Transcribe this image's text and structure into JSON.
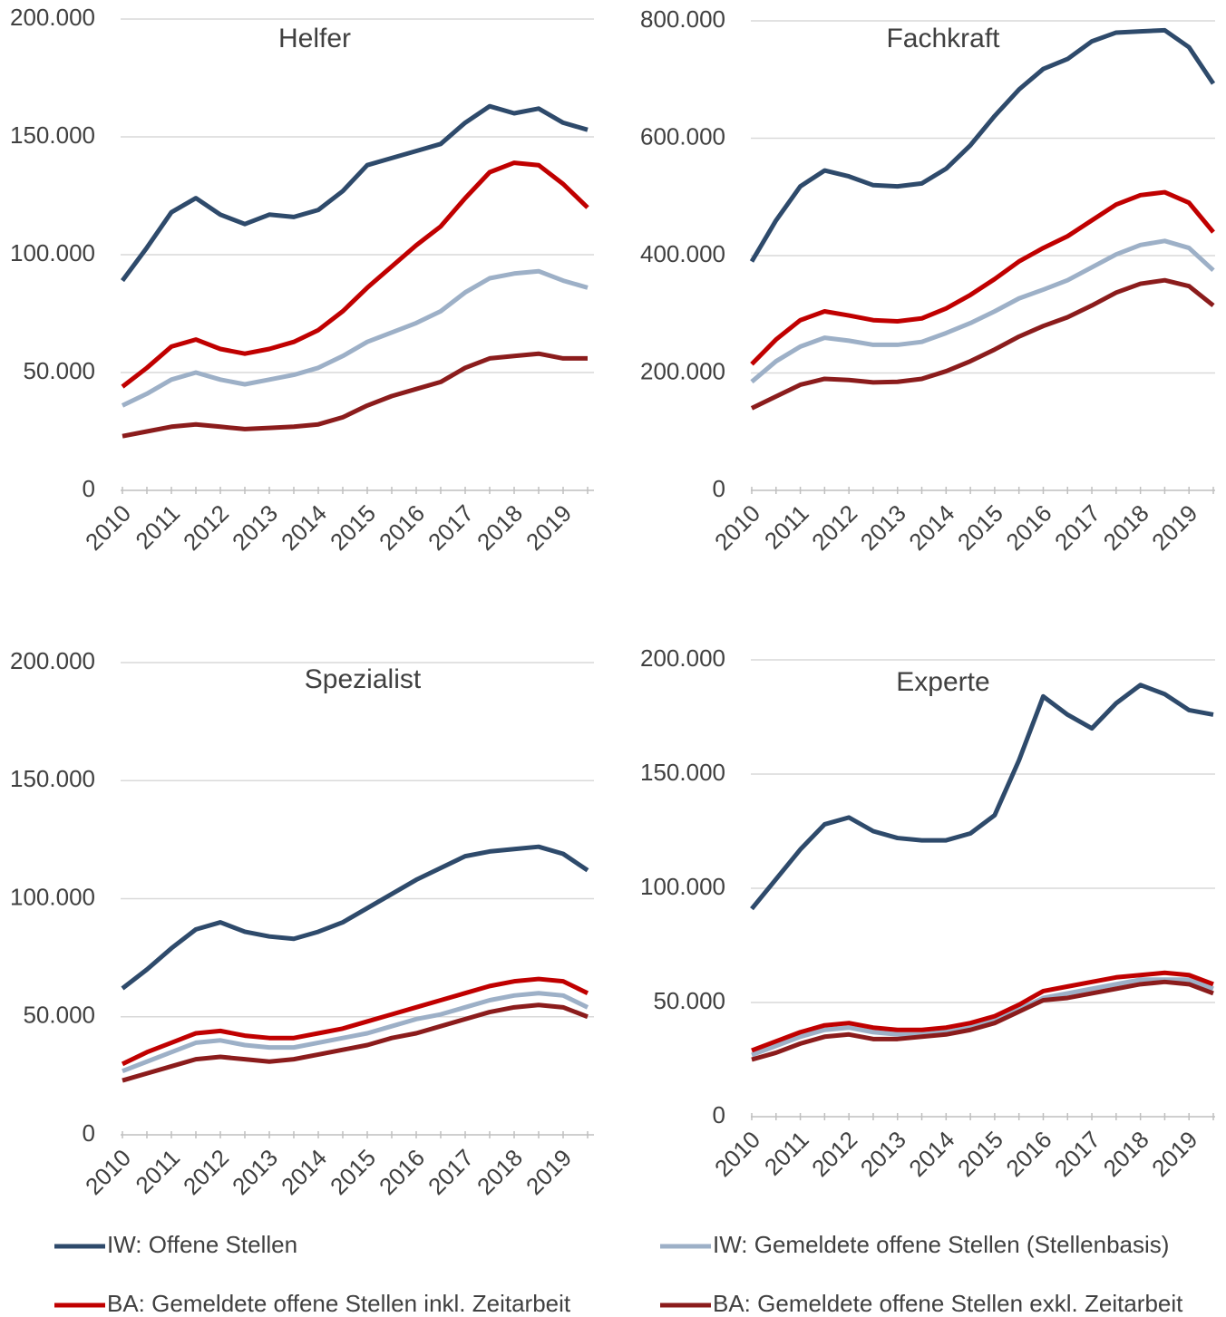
{
  "legend": [
    {
      "name": "IW: Offene Stellen",
      "color": "#2e4a6b"
    },
    {
      "name": "IW: Gemeldete offene Stellen (Stellenbasis)",
      "color": "#9db0c7"
    },
    {
      "name": "BA: Gemeldete offene Stellen inkl. Zeitarbeit",
      "color": "#c00000"
    },
    {
      "name": "BA: Gemeldete offene Stellen exkl. Zeitarbeit",
      "color": "#8b1c1c"
    }
  ],
  "chart_data": [
    {
      "type": "line",
      "title": "Helfer",
      "categories": [
        "2010",
        null,
        "2011",
        null,
        "2012",
        null,
        "2013",
        null,
        "2014",
        null,
        "2015",
        null,
        "2016",
        null,
        "2017",
        null,
        "2018",
        null,
        "2019",
        null
      ],
      "ylim": [
        0,
        200000
      ],
      "yticks": [
        0,
        {
          "value": 50000,
          "label": "50.000"
        },
        {
          "value": 100000,
          "label": "100.000"
        },
        {
          "value": 150000,
          "label": "150.000"
        },
        {
          "value": 200000,
          "label": "200.000"
        }
      ],
      "grid": true,
      "series": [
        {
          "color": "#2e4a6b",
          "values": [
            89000,
            103000,
            118000,
            124000,
            117000,
            113000,
            117000,
            116000,
            119000,
            127000,
            138000,
            141000,
            144000,
            147000,
            156000,
            163000,
            160000,
            162000,
            156000,
            153000
          ]
        },
        {
          "color": "#9db0c7",
          "values": [
            36000,
            41000,
            47000,
            50000,
            47000,
            45000,
            47000,
            49000,
            52000,
            57000,
            63000,
            67000,
            71000,
            76000,
            84000,
            90000,
            92000,
            93000,
            89000,
            86000
          ]
        },
        {
          "color": "#c00000",
          "values": [
            44000,
            52000,
            61000,
            64000,
            60000,
            58000,
            60000,
            63000,
            68000,
            76000,
            86000,
            95000,
            104000,
            112000,
            124000,
            135000,
            139000,
            138000,
            130000,
            120000
          ]
        },
        {
          "color": "#8b1c1c",
          "values": [
            23000,
            25000,
            27000,
            28000,
            27000,
            26000,
            26500,
            27000,
            28000,
            31000,
            36000,
            40000,
            43000,
            46000,
            52000,
            56000,
            57000,
            58000,
            56000,
            56000
          ]
        }
      ]
    },
    {
      "type": "line",
      "title": "Fachkraft",
      "categories": [
        "2010",
        null,
        "2011",
        null,
        "2012",
        null,
        "2013",
        null,
        "2014",
        null,
        "2015",
        null,
        "2016",
        null,
        "2017",
        null,
        "2018",
        null,
        "2019",
        null
      ],
      "ylim": [
        0,
        800000
      ],
      "yticks": [
        0,
        {
          "value": 200000,
          "label": "200.000"
        },
        {
          "value": 400000,
          "label": "400.000"
        },
        {
          "value": 600000,
          "label": "600.000"
        },
        {
          "value": 800000,
          "label": "800.000"
        }
      ],
      "grid": true,
      "series": [
        {
          "color": "#2e4a6b",
          "values": [
            390000,
            460000,
            518000,
            545000,
            535000,
            520000,
            518000,
            523000,
            548000,
            588000,
            638000,
            683000,
            718000,
            735000,
            765000,
            780000,
            782000,
            784000,
            755000,
            693000
          ]
        },
        {
          "color": "#9db0c7",
          "values": [
            185000,
            220000,
            245000,
            260000,
            255000,
            248000,
            248000,
            253000,
            268000,
            285000,
            305000,
            327000,
            342000,
            358000,
            380000,
            402000,
            418000,
            425000,
            413000,
            375000
          ]
        },
        {
          "color": "#c00000",
          "values": [
            215000,
            257000,
            290000,
            305000,
            298000,
            290000,
            288000,
            293000,
            310000,
            333000,
            360000,
            390000,
            413000,
            433000,
            460000,
            487000,
            503000,
            508000,
            490000,
            440000
          ]
        },
        {
          "color": "#8b1c1c",
          "values": [
            140000,
            160000,
            180000,
            190000,
            188000,
            184000,
            185000,
            190000,
            203000,
            220000,
            240000,
            262000,
            280000,
            295000,
            315000,
            337000,
            352000,
            358000,
            348000,
            315000
          ]
        }
      ]
    },
    {
      "type": "line",
      "title": "Spezialist",
      "categories": [
        "2010",
        null,
        "2011",
        null,
        "2012",
        null,
        "2013",
        null,
        "2014",
        null,
        "2015",
        null,
        "2016",
        null,
        "2017",
        null,
        "2018",
        null,
        "2019",
        null
      ],
      "ylim": [
        0,
        200000
      ],
      "yticks": [
        0,
        {
          "value": 50000,
          "label": "50.000"
        },
        {
          "value": 100000,
          "label": "100.000"
        },
        {
          "value": 150000,
          "label": "150.000"
        },
        {
          "value": 200000,
          "label": "200.000"
        }
      ],
      "grid": true,
      "series": [
        {
          "color": "#2e4a6b",
          "values": [
            62000,
            70000,
            79000,
            87000,
            90000,
            86000,
            84000,
            83000,
            86000,
            90000,
            96000,
            102000,
            108000,
            113000,
            118000,
            120000,
            121000,
            122000,
            119000,
            112000
          ]
        },
        {
          "color": "#9db0c7",
          "values": [
            27000,
            31000,
            35000,
            39000,
            40000,
            38000,
            37000,
            37000,
            39000,
            41000,
            43000,
            46000,
            49000,
            51000,
            54000,
            57000,
            59000,
            60000,
            59000,
            54000
          ]
        },
        {
          "color": "#c00000",
          "values": [
            30000,
            35000,
            39000,
            43000,
            44000,
            42000,
            41000,
            41000,
            43000,
            45000,
            48000,
            51000,
            54000,
            57000,
            60000,
            63000,
            65000,
            66000,
            65000,
            60000
          ]
        },
        {
          "color": "#8b1c1c",
          "values": [
            23000,
            26000,
            29000,
            32000,
            33000,
            32000,
            31000,
            32000,
            34000,
            36000,
            38000,
            41000,
            43000,
            46000,
            49000,
            52000,
            54000,
            55000,
            54000,
            50000
          ]
        }
      ]
    },
    {
      "type": "line",
      "title": "Experte",
      "categories": [
        "2010",
        null,
        "2011",
        null,
        "2012",
        null,
        "2013",
        null,
        "2014",
        null,
        "2015",
        null,
        "2016",
        null,
        "2017",
        null,
        "2018",
        null,
        "2019",
        null
      ],
      "ylim": [
        0,
        200000
      ],
      "yticks": [
        0,
        {
          "value": 50000,
          "label": "50.000"
        },
        {
          "value": 100000,
          "label": "100.000"
        },
        {
          "value": 150000,
          "label": "150.000"
        },
        {
          "value": 200000,
          "label": "200.000"
        }
      ],
      "grid": true,
      "series": [
        {
          "color": "#2e4a6b",
          "values": [
            91000,
            104000,
            117000,
            128000,
            131000,
            125000,
            122000,
            121000,
            121000,
            124000,
            132000,
            156000,
            184000,
            176000,
            170000,
            181000,
            189000,
            185000,
            178000,
            176000
          ]
        },
        {
          "color": "#9db0c7",
          "values": [
            27000,
            31000,
            35000,
            38000,
            39000,
            37000,
            36000,
            36000,
            37000,
            39000,
            42000,
            47000,
            52000,
            54000,
            56000,
            58000,
            60000,
            60000,
            60000,
            56000
          ]
        },
        {
          "color": "#c00000",
          "values": [
            29000,
            33000,
            37000,
            40000,
            41000,
            39000,
            38000,
            38000,
            39000,
            41000,
            44000,
            49000,
            55000,
            57000,
            59000,
            61000,
            62000,
            63000,
            62000,
            58000
          ]
        },
        {
          "color": "#8b1c1c",
          "values": [
            25000,
            28000,
            32000,
            35000,
            36000,
            34000,
            34000,
            35000,
            36000,
            38000,
            41000,
            46000,
            51000,
            52000,
            54000,
            56000,
            58000,
            59000,
            58000,
            54000
          ]
        }
      ]
    }
  ]
}
